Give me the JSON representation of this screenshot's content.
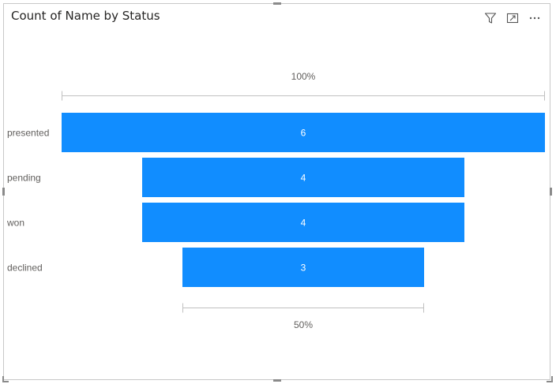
{
  "visual": {
    "title": "Count of Name by Status",
    "icons": [
      "filter-icon",
      "focus-mode-icon",
      "more-options-icon"
    ]
  },
  "chart_data": {
    "type": "funnel",
    "title": "Count of Name by Status",
    "categories": [
      "presented",
      "pending",
      "won",
      "declined"
    ],
    "values": [
      6,
      4,
      4,
      3
    ],
    "top_percent_label": "100%",
    "bottom_percent_label": "50%",
    "bar_color": "#118DFF",
    "label_color": "#ffffff",
    "category_label_color": "#605E5C",
    "percent_label_color": "#605E5C"
  }
}
